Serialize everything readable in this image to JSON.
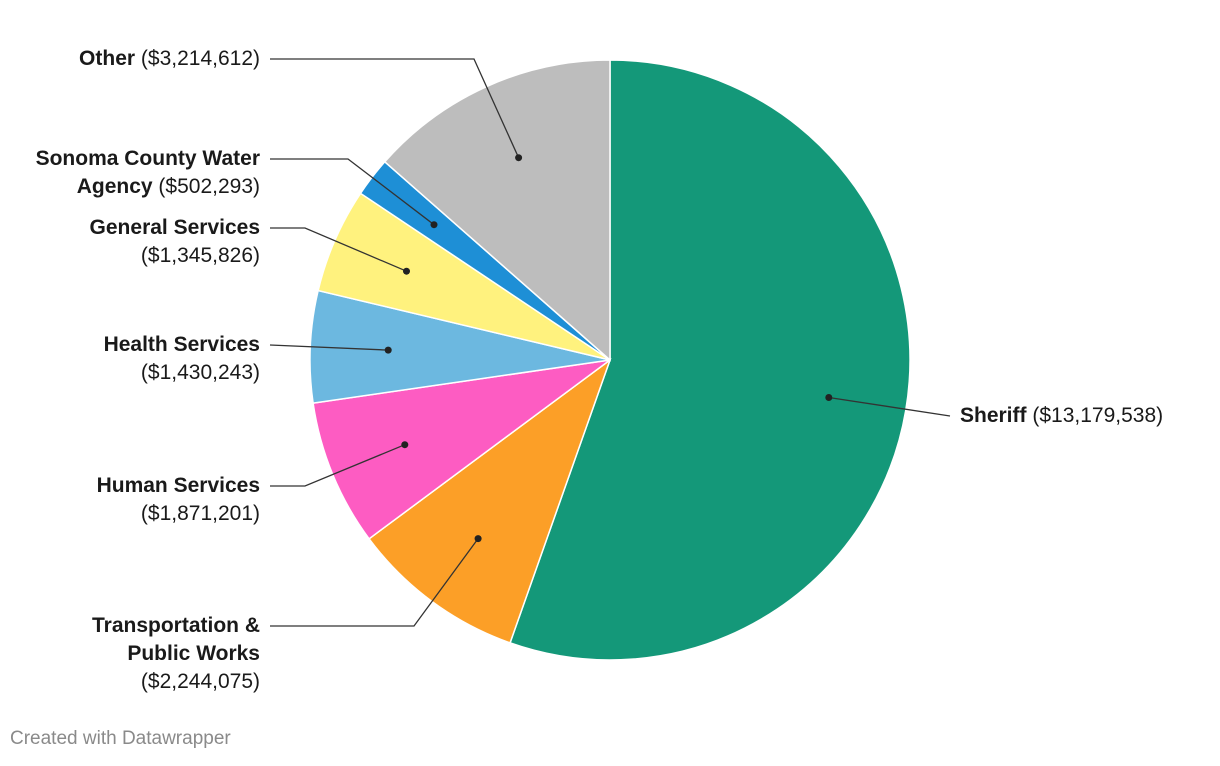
{
  "chart_data": {
    "type": "pie",
    "title": "",
    "slices": [
      {
        "label": "Sheriff",
        "value": 13179538,
        "value_label": "($13,179,538)",
        "color": "#149879"
      },
      {
        "label": "Transportation & Public Works",
        "value": 2244075,
        "value_label": "($2,244,075)",
        "color": "#fc9f27"
      },
      {
        "label": "Human Services",
        "value": 1871201,
        "value_label": "($1,871,201)",
        "color": "#fd5cc2"
      },
      {
        "label": "Health Services",
        "value": 1430243,
        "value_label": "($1,430,243)",
        "color": "#6cb8e0"
      },
      {
        "label": "General Services",
        "value": 1345826,
        "value_label": "($1,345,826)",
        "color": "#fff27e"
      },
      {
        "label": "Sonoma County Water Agency",
        "value": 502293,
        "value_label": "($502,293)",
        "color": "#1e8fd6"
      },
      {
        "label": "Other",
        "value": 3214612,
        "value_label": "($3,214,612)",
        "color": "#bdbdbd"
      }
    ]
  },
  "footer": {
    "credit": "Created with Datawrapper"
  }
}
